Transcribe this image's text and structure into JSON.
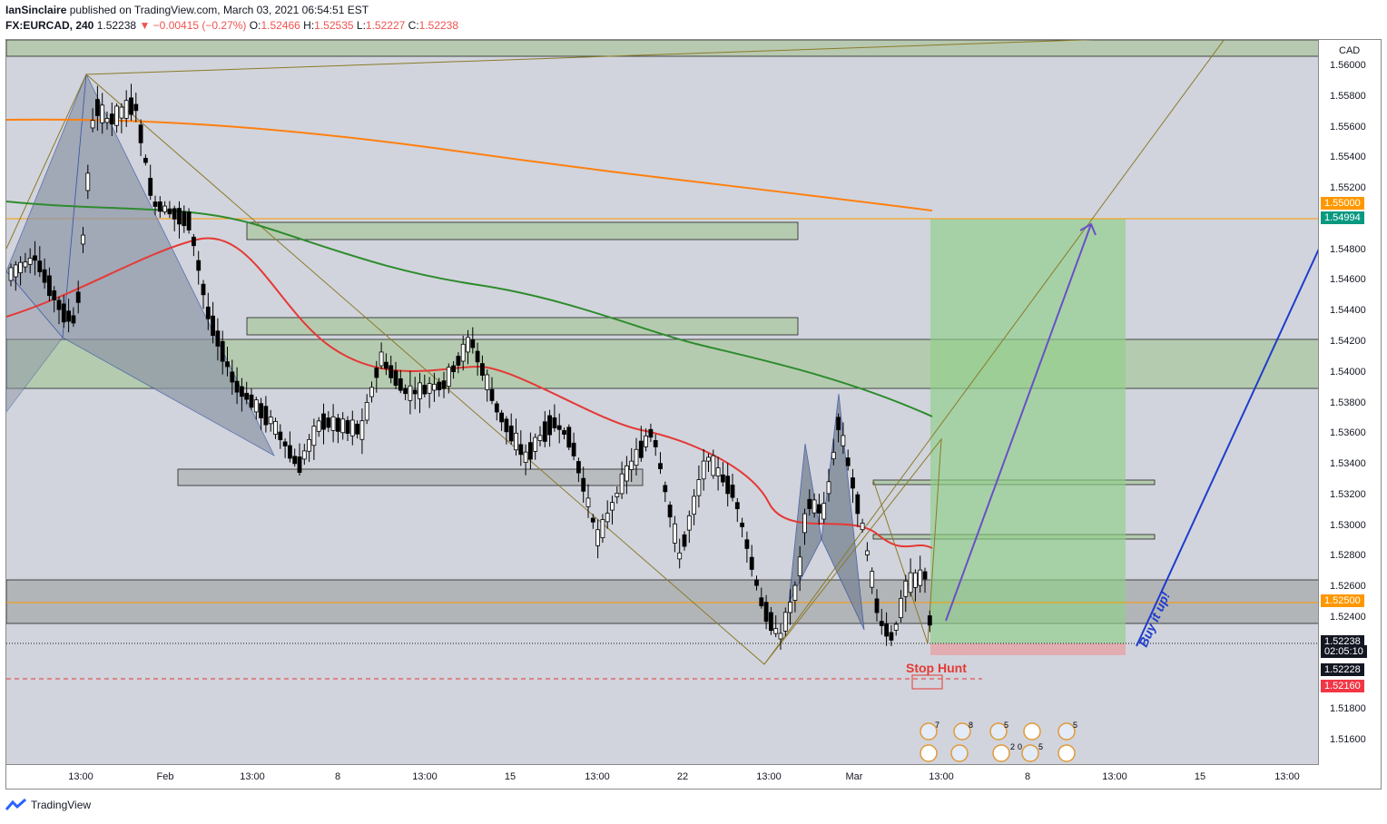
{
  "header": {
    "author": "IanSinclaire",
    "published_text": "published on TradingView.com, March 03, 2021 06:54:51 EST",
    "symbol": "FX:EURCAD, 240",
    "last": "1.52238",
    "change": "−0.00415 (−0.27%)",
    "o_label": "O:",
    "o_val": "1.52466",
    "h_label": "H:",
    "h_val": "1.52535",
    "l_label": "L:",
    "l_val": "1.52227",
    "c_label": "C:",
    "c_val": "1.52238"
  },
  "axis": {
    "currency": "CAD",
    "ticks": [
      "1.56000",
      "1.55800",
      "1.55600",
      "1.55400",
      "1.55200",
      "1.54800",
      "1.54600",
      "1.54400",
      "1.54200",
      "1.54000",
      "1.53800",
      "1.53600",
      "1.53400",
      "1.53200",
      "1.53000",
      "1.52800",
      "1.52600",
      "1.52400",
      "1.51800",
      "1.51600"
    ],
    "badges": [
      {
        "text": "1.55000",
        "color": "#ff9800"
      },
      {
        "text": "1.54994",
        "color": "#089981"
      },
      {
        "text": "1.52500",
        "color": "#ff9800"
      },
      {
        "text": "1.52238",
        "color": "#131722"
      },
      {
        "text": "02:05:10",
        "color": "#131722"
      },
      {
        "text": "1.52228",
        "color": "#131722"
      },
      {
        "text": "1.52160",
        "color": "#f23645"
      }
    ]
  },
  "xaxis": [
    "13:00",
    "Feb",
    "13:00",
    "8",
    "13:00",
    "15",
    "13:00",
    "22",
    "13:00",
    "Mar",
    "13:00",
    "8",
    "13:00",
    "15",
    "13:00"
  ],
  "annotations": {
    "stop_hunt": "Stop Hunt",
    "buy_it_up": "Buy it up!"
  },
  "events": {
    "counts": [
      "7",
      "8",
      "5",
      "5",
      "2",
      "0",
      "5"
    ]
  },
  "footer": {
    "brand": "TradingView"
  },
  "colors": {
    "up": "#ffffff",
    "down": "#000000",
    "ema_red": "#f23645",
    "ema_green": "#2e8b2e",
    "ema_orange": "#ff7f0e",
    "zone_green": "#a5d6a7",
    "target_green": "#81c784",
    "stop_red": "#ef9a9a"
  },
  "chart_data": {
    "type": "candlestick",
    "symbol": "FX:EURCAD",
    "timeframe": "240",
    "price_axis_range": [
      1.515,
      1.5615
    ],
    "key_levels": [
      1.55,
      1.54994,
      1.525,
      1.52238,
      1.52228,
      1.5216
    ],
    "current_price": 1.52238
  }
}
